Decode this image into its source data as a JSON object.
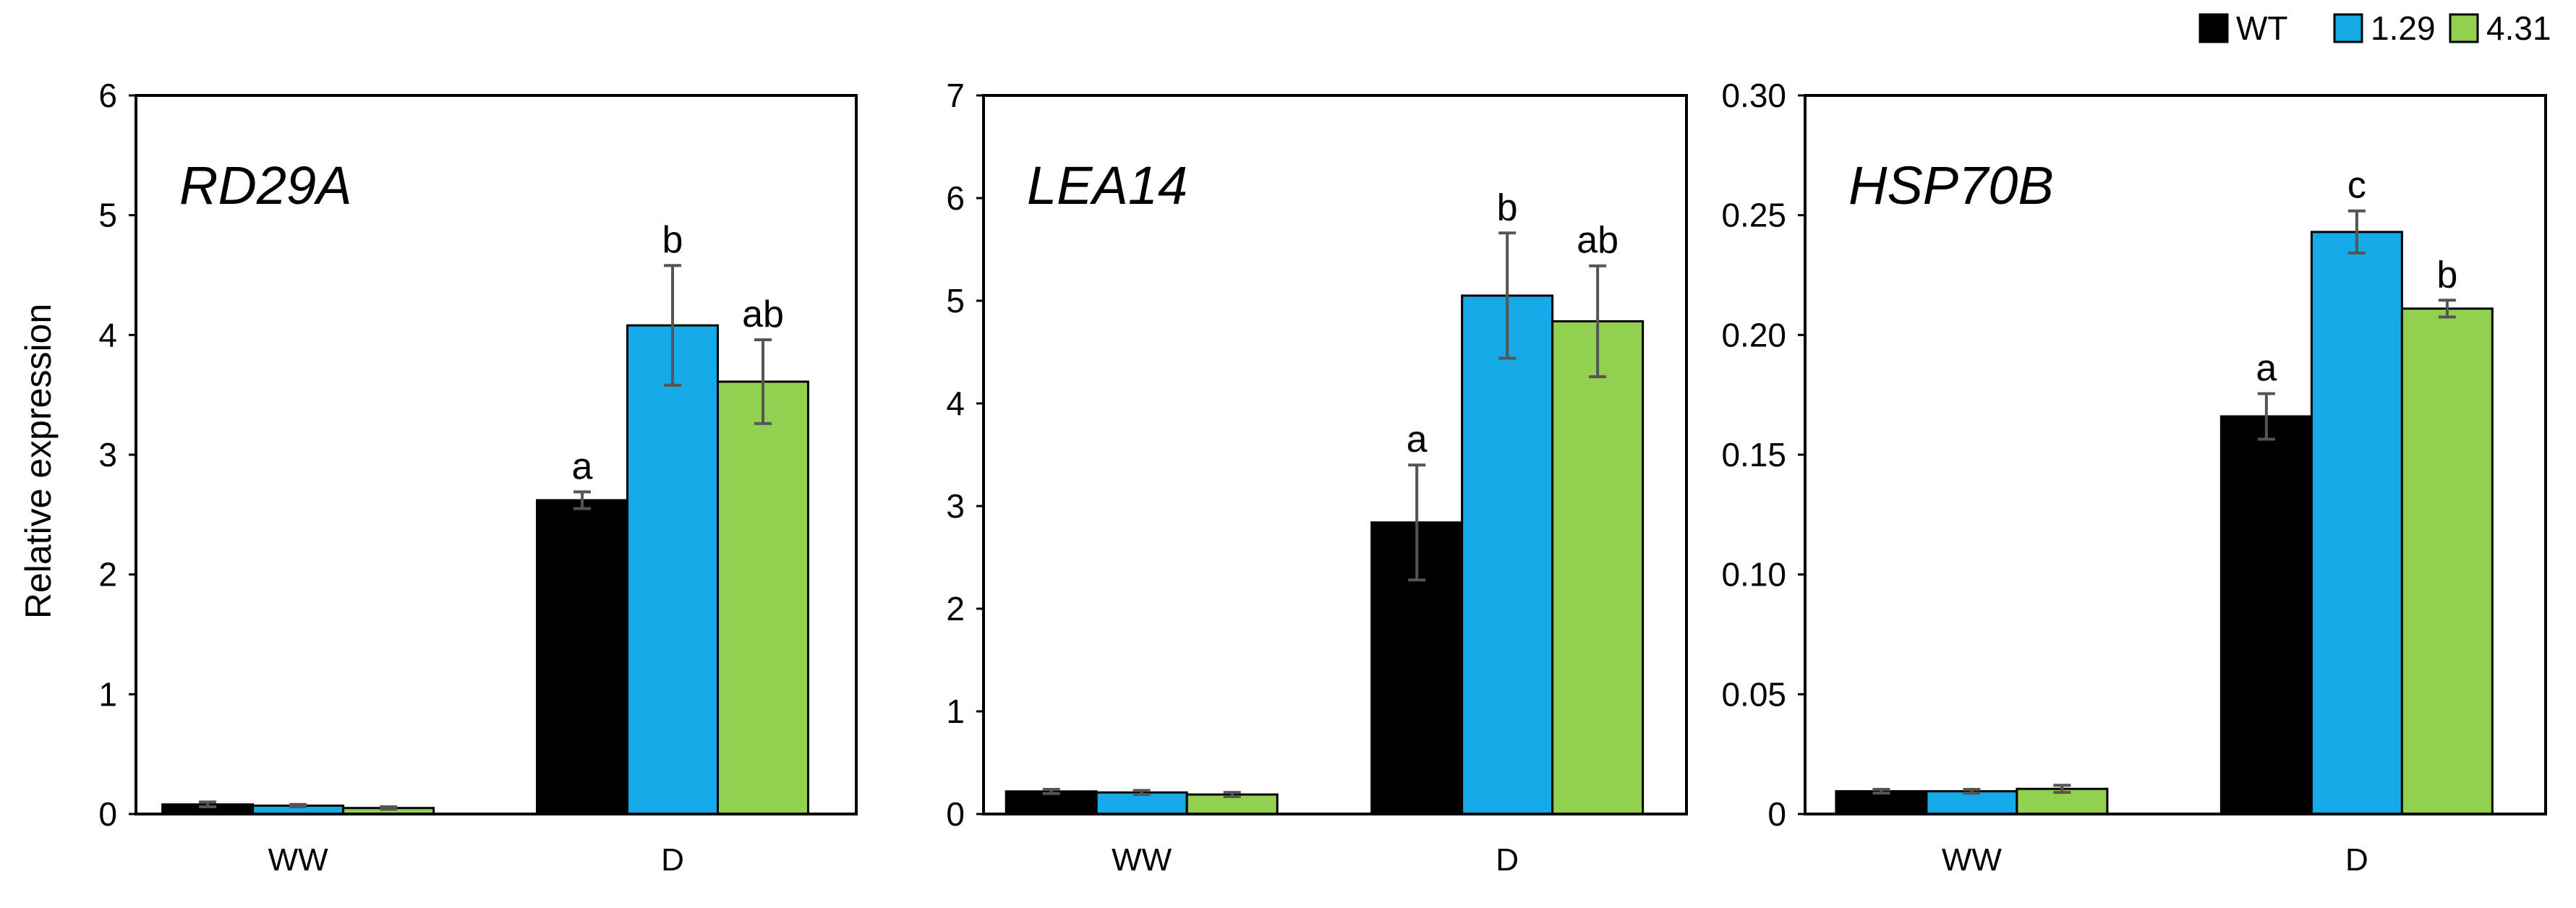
{
  "chart_data": {
    "type": "bar",
    "ylabel": "Relative expression",
    "categories": [
      "WW",
      "D"
    ],
    "legend": {
      "placement": "top-right",
      "entries": [
        {
          "name": "WT",
          "color": "#000000"
        },
        {
          "name": "1.29",
          "color": "#16a9e8"
        },
        {
          "name": "4.31",
          "color": "#92d050"
        }
      ]
    },
    "panels": [
      {
        "title": "RD29A",
        "ylim": [
          0,
          6
        ],
        "yticks": [
          0,
          1,
          2,
          3,
          4,
          5,
          6
        ],
        "yticklabels": [
          "0",
          "1",
          "2",
          "3",
          "4",
          "5",
          "6"
        ],
        "series": [
          {
            "name": "WT",
            "values": [
              0.08,
              2.62
            ],
            "errors": [
              0.02,
              0.07
            ],
            "letters": [
              "",
              "a"
            ]
          },
          {
            "name": "1.29",
            "values": [
              0.07,
              4.08
            ],
            "errors": [
              0.01,
              0.5
            ],
            "letters": [
              "",
              "b"
            ]
          },
          {
            "name": "4.31",
            "values": [
              0.05,
              3.61
            ],
            "errors": [
              0.01,
              0.35
            ],
            "letters": [
              "",
              "ab"
            ]
          }
        ]
      },
      {
        "title": "LEA14",
        "ylim": [
          0,
          7
        ],
        "yticks": [
          0,
          1,
          2,
          3,
          4,
          5,
          6,
          7
        ],
        "yticklabels": [
          "0",
          "1",
          "2",
          "3",
          "4",
          "5",
          "6",
          "7"
        ],
        "series": [
          {
            "name": "WT",
            "values": [
              0.22,
              2.84
            ],
            "errors": [
              0.02,
              0.56
            ],
            "letters": [
              "",
              "a"
            ]
          },
          {
            "name": "1.29",
            "values": [
              0.21,
              5.05
            ],
            "errors": [
              0.02,
              0.61
            ],
            "letters": [
              "",
              "b"
            ]
          },
          {
            "name": "4.31",
            "values": [
              0.19,
              4.8
            ],
            "errors": [
              0.02,
              0.54
            ],
            "letters": [
              "",
              "ab"
            ]
          }
        ]
      },
      {
        "title": "HSP70B",
        "ylim": [
          0,
          0.3
        ],
        "yticks": [
          0,
          0.05,
          0.1,
          0.15,
          0.2,
          0.25,
          0.3
        ],
        "yticklabels": [
          "0",
          "0.05",
          "0.10",
          "0.15",
          "0.20",
          "0.25",
          "0.30"
        ],
        "series": [
          {
            "name": "WT",
            "values": [
              0.0095,
              0.166
            ],
            "errors": [
              0.0008,
              0.0095
            ],
            "letters": [
              "",
              "a"
            ]
          },
          {
            "name": "1.29",
            "values": [
              0.0095,
              0.243
            ],
            "errors": [
              0.0008,
              0.0088
            ],
            "letters": [
              "",
              "c"
            ]
          },
          {
            "name": "4.31",
            "values": [
              0.0105,
              0.211
            ],
            "errors": [
              0.0015,
              0.0035
            ],
            "letters": [
              "",
              "b"
            ]
          }
        ]
      }
    ]
  }
}
